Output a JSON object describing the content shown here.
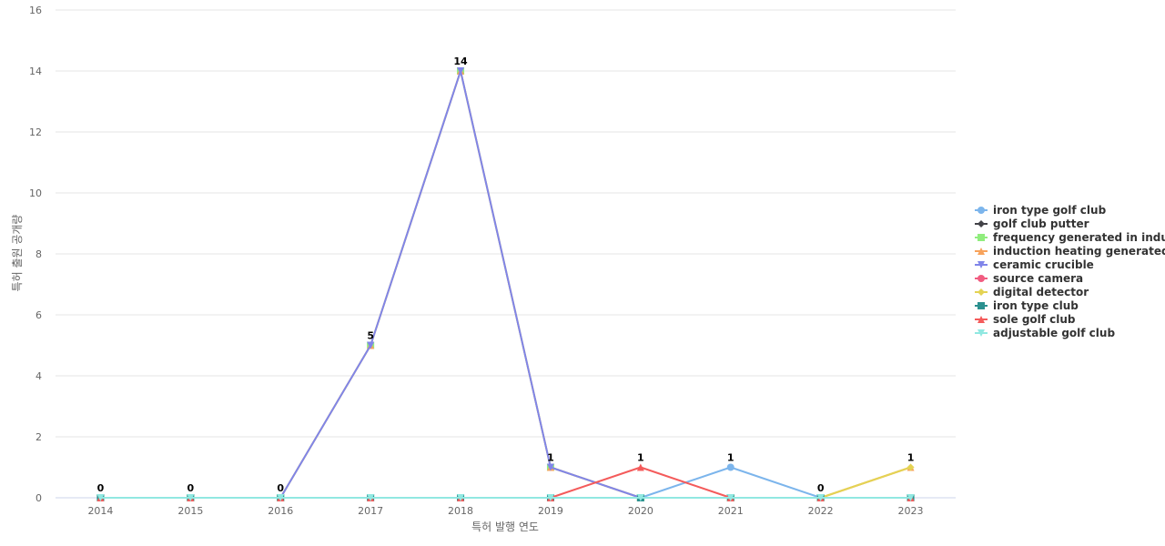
{
  "chart_data": {
    "type": "line",
    "title": "",
    "xlabel": "특허 발행 연도",
    "ylabel": "특허 출원 공개량",
    "x": [
      "2014",
      "2015",
      "2016",
      "2017",
      "2018",
      "2019",
      "2020",
      "2021",
      "2022",
      "2023"
    ],
    "ylim": [
      0,
      16
    ],
    "yticks": [
      0,
      2,
      4,
      6,
      8,
      10,
      12,
      14,
      16
    ],
    "grid": true,
    "legend_position": "right",
    "data_labels": [
      "0",
      "0",
      "0",
      "5",
      "14",
      "1",
      "1",
      "1",
      "0",
      "1"
    ],
    "data_label_values": [
      0,
      0,
      0,
      5,
      14,
      1,
      1,
      1,
      0,
      1
    ],
    "series": [
      {
        "name": "iron type golf club",
        "color": "#7cb5ec",
        "marker": "circle",
        "values": [
          0,
          0,
          0,
          0,
          0,
          0,
          0,
          1,
          0,
          0
        ]
      },
      {
        "name": "golf club putter",
        "color": "#434348",
        "marker": "diamond",
        "values": [
          0,
          0,
          0,
          0,
          0,
          0,
          0,
          0,
          0,
          0
        ]
      },
      {
        "name": "frequency generated in indu...",
        "color": "#90ed7d",
        "marker": "square",
        "values": [
          0,
          0,
          0,
          5,
          14,
          1,
          0,
          0,
          0,
          0
        ]
      },
      {
        "name": "induction heating generated...",
        "color": "#f7a35c",
        "marker": "triangle",
        "values": [
          0,
          0,
          0,
          5,
          14,
          1,
          0,
          0,
          0,
          1
        ]
      },
      {
        "name": "ceramic crucible",
        "color": "#8085e9",
        "marker": "triangle-down",
        "values": [
          0,
          0,
          0,
          5,
          14,
          1,
          0,
          0,
          0,
          0
        ]
      },
      {
        "name": "source camera",
        "color": "#f15c80",
        "marker": "circle",
        "values": [
          0,
          0,
          0,
          0,
          0,
          0,
          0,
          0,
          0,
          0
        ]
      },
      {
        "name": "digital detector",
        "color": "#e4d354",
        "marker": "diamond",
        "values": [
          0,
          0,
          0,
          0,
          0,
          0,
          0,
          0,
          0,
          1
        ]
      },
      {
        "name": "iron type club",
        "color": "#2b908f",
        "marker": "square",
        "values": [
          0,
          0,
          0,
          0,
          0,
          0,
          0,
          0,
          0,
          0
        ]
      },
      {
        "name": "sole golf club",
        "color": "#f45b5b",
        "marker": "triangle",
        "values": [
          0,
          0,
          0,
          0,
          0,
          0,
          1,
          0,
          0,
          0
        ]
      },
      {
        "name": "adjustable golf club",
        "color": "#91e8e1",
        "marker": "triangle-down",
        "values": [
          0,
          0,
          0,
          0,
          0,
          0,
          0,
          0,
          0,
          0
        ]
      }
    ]
  }
}
